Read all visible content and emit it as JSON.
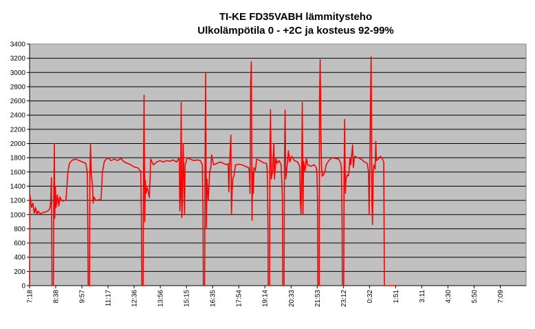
{
  "title": "TI-KE FD35VABH lämmitysteho",
  "subtitle": "Ulkolämpötila  0 - +2C ja kosteus 92-99%",
  "colors": {
    "plot_bg": "#c0c0c0",
    "line": "#ff0000",
    "grid": "#000000"
  },
  "chart_data": {
    "type": "line",
    "title": "TI-KE FD35VABH lämmitysteho",
    "subtitle": "Ulkolämpötila  0 - +2C ja kosteus 92-99%",
    "xlabel": "",
    "ylabel": "",
    "ylim": [
      0,
      3400
    ],
    "yticks": [
      0,
      200,
      400,
      600,
      800,
      1000,
      1200,
      1400,
      1600,
      1800,
      2000,
      2200,
      2400,
      2600,
      2800,
      3000,
      3200,
      3400
    ],
    "xticks": [
      "7:18",
      "8:38",
      "9:57",
      "11:17",
      "12:36",
      "13:56",
      "15:15",
      "16:35",
      "17:54",
      "19:14",
      "20:33",
      "21:53",
      "23:12",
      "0:32",
      "1:51",
      "3:11",
      "4:30",
      "5:50",
      "7:09"
    ],
    "x_unit": "minutes since 7:18",
    "x_max": 1500,
    "grid": "horizontal",
    "legend": "none",
    "series": [
      {
        "values": [
          [
            0,
            0
          ],
          [
            1,
            1280
          ],
          [
            3,
            1200
          ],
          [
            6,
            1100
          ],
          [
            10,
            1160
          ],
          [
            14,
            1020
          ],
          [
            18,
            1100
          ],
          [
            22,
            1000
          ],
          [
            26,
            1050
          ],
          [
            32,
            1010
          ],
          [
            40,
            1030
          ],
          [
            50,
            1040
          ],
          [
            58,
            1060
          ],
          [
            62,
            1100
          ],
          [
            64,
            1200
          ],
          [
            66,
            1520
          ],
          [
            67,
            760
          ],
          [
            68,
            0
          ],
          [
            72,
            0
          ],
          [
            73,
            1200
          ],
          [
            75,
            2000
          ],
          [
            76,
            950
          ],
          [
            78,
            1400
          ],
          [
            80,
            1100
          ],
          [
            84,
            1280
          ],
          [
            88,
            1120
          ],
          [
            92,
            1250
          ],
          [
            96,
            1200
          ],
          [
            100,
            1190
          ],
          [
            110,
            1200
          ],
          [
            116,
            1600
          ],
          [
            120,
            1720
          ],
          [
            130,
            1770
          ],
          [
            140,
            1780
          ],
          [
            150,
            1760
          ],
          [
            160,
            1740
          ],
          [
            170,
            1720
          ],
          [
            174,
            1600
          ],
          [
            176,
            820
          ],
          [
            177,
            0
          ],
          [
            181,
            0
          ],
          [
            182,
            1500
          ],
          [
            184,
            2000
          ],
          [
            186,
            1600
          ],
          [
            190,
            1400
          ],
          [
            192,
            1160
          ],
          [
            194,
            1250
          ],
          [
            200,
            1200
          ],
          [
            210,
            1210
          ],
          [
            216,
            1220
          ],
          [
            220,
            1600
          ],
          [
            226,
            1750
          ],
          [
            236,
            1800
          ],
          [
            246,
            1760
          ],
          [
            256,
            1780
          ],
          [
            266,
            1760
          ],
          [
            276,
            1790
          ],
          [
            286,
            1740
          ],
          [
            296,
            1720
          ],
          [
            306,
            1700
          ],
          [
            316,
            1670
          ],
          [
            326,
            1660
          ],
          [
            336,
            1610
          ],
          [
            338,
            880
          ],
          [
            339,
            0
          ],
          [
            343,
            0
          ],
          [
            344,
            1500
          ],
          [
            346,
            2680
          ],
          [
            348,
            900
          ],
          [
            350,
            1480
          ],
          [
            352,
            1300
          ],
          [
            356,
            1380
          ],
          [
            360,
            1280
          ],
          [
            362,
            1240
          ],
          [
            364,
            1500
          ],
          [
            366,
            1780
          ],
          [
            374,
            1700
          ],
          [
            384,
            1740
          ],
          [
            394,
            1760
          ],
          [
            404,
            1740
          ],
          [
            414,
            1760
          ],
          [
            424,
            1750
          ],
          [
            434,
            1770
          ],
          [
            444,
            1740
          ],
          [
            452,
            1800
          ],
          [
            454,
            1050
          ],
          [
            456,
            1300
          ],
          [
            458,
            2580
          ],
          [
            460,
            960
          ],
          [
            462,
            1200
          ],
          [
            464,
            2000
          ],
          [
            466,
            1600
          ],
          [
            468,
            1000
          ],
          [
            470,
            1700
          ],
          [
            476,
            1800
          ],
          [
            486,
            1780
          ],
          [
            496,
            1760
          ],
          [
            506,
            1770
          ],
          [
            516,
            1760
          ],
          [
            522,
            1700
          ],
          [
            524,
            1000
          ],
          [
            525,
            0
          ],
          [
            529,
            0
          ],
          [
            530,
            1600
          ],
          [
            532,
            3000
          ],
          [
            534,
            800
          ],
          [
            536,
            1500
          ],
          [
            540,
            1200
          ],
          [
            544,
            1600
          ],
          [
            548,
            1680
          ],
          [
            550,
            1840
          ],
          [
            556,
            1700
          ],
          [
            566,
            1720
          ],
          [
            576,
            1740
          ],
          [
            586,
            1720
          ],
          [
            596,
            1700
          ],
          [
            600,
            1720
          ],
          [
            602,
            1320
          ],
          [
            604,
            1660
          ],
          [
            608,
            2120
          ],
          [
            610,
            1000
          ],
          [
            612,
            1320
          ],
          [
            614,
            1500
          ],
          [
            618,
            1560
          ],
          [
            622,
            1700
          ],
          [
            632,
            1710
          ],
          [
            642,
            1700
          ],
          [
            652,
            1680
          ],
          [
            662,
            1660
          ],
          [
            664,
            1600
          ],
          [
            666,
            1300
          ],
          [
            668,
            2850
          ],
          [
            670,
            3150
          ],
          [
            672,
            920
          ],
          [
            674,
            1600
          ],
          [
            676,
            1300
          ],
          [
            678,
            1660
          ],
          [
            682,
            1620
          ],
          [
            686,
            1780
          ],
          [
            696,
            1760
          ],
          [
            706,
            1730
          ],
          [
            716,
            1720
          ],
          [
            718,
            1620
          ],
          [
            720,
            960
          ],
          [
            721,
            0
          ],
          [
            725,
            0
          ],
          [
            726,
            1800
          ],
          [
            728,
            2480
          ],
          [
            730,
            1500
          ],
          [
            734,
            1600
          ],
          [
            738,
            2000
          ],
          [
            740,
            1500
          ],
          [
            744,
            1800
          ],
          [
            748,
            1720
          ],
          [
            754,
            1760
          ],
          [
            760,
            1700
          ],
          [
            764,
            1220
          ],
          [
            765,
            0
          ],
          [
            769,
            0
          ],
          [
            770,
            1700
          ],
          [
            772,
            2470
          ],
          [
            774,
            1500
          ],
          [
            778,
            1680
          ],
          [
            782,
            1900
          ],
          [
            786,
            1740
          ],
          [
            792,
            1820
          ],
          [
            800,
            1760
          ],
          [
            810,
            1740
          ],
          [
            816,
            1680
          ],
          [
            818,
            1200
          ],
          [
            820,
            1000
          ],
          [
            822,
            1600
          ],
          [
            824,
            2580
          ],
          [
            826,
            1000
          ],
          [
            828,
            1750
          ],
          [
            832,
            1600
          ],
          [
            836,
            1800
          ],
          [
            840,
            1700
          ],
          [
            850,
            1680
          ],
          [
            860,
            1700
          ],
          [
            866,
            1660
          ],
          [
            868,
            1600
          ],
          [
            870,
            1200
          ],
          [
            871,
            0
          ],
          [
            875,
            0
          ],
          [
            876,
            2600
          ],
          [
            878,
            3180
          ],
          [
            880,
            2200
          ],
          [
            882,
            1700
          ],
          [
            884,
            1540
          ],
          [
            888,
            1560
          ],
          [
            892,
            1600
          ],
          [
            896,
            1700
          ],
          [
            904,
            1760
          ],
          [
            914,
            1800
          ],
          [
            924,
            1790
          ],
          [
            934,
            1780
          ],
          [
            940,
            1720
          ],
          [
            942,
            1660
          ],
          [
            944,
            1000
          ],
          [
            945,
            0
          ],
          [
            949,
            0
          ],
          [
            950,
            1500
          ],
          [
            952,
            2340
          ],
          [
            954,
            1300
          ],
          [
            956,
            1500
          ],
          [
            960,
            1560
          ],
          [
            964,
            1550
          ],
          [
            968,
            1800
          ],
          [
            970,
            1700
          ],
          [
            976,
            1980
          ],
          [
            978,
            1660
          ],
          [
            982,
            1820
          ],
          [
            992,
            1800
          ],
          [
            1002,
            1780
          ],
          [
            1012,
            1740
          ],
          [
            1020,
            1720
          ],
          [
            1024,
            1600
          ],
          [
            1026,
            1000
          ],
          [
            1028,
            1700
          ],
          [
            1030,
            2600
          ],
          [
            1032,
            3220
          ],
          [
            1034,
            1200
          ],
          [
            1036,
            860
          ],
          [
            1038,
            1600
          ],
          [
            1040,
            1700
          ],
          [
            1044,
            1640
          ],
          [
            1046,
            2030
          ],
          [
            1048,
            1760
          ],
          [
            1054,
            1780
          ],
          [
            1060,
            1820
          ],
          [
            1064,
            1800
          ],
          [
            1068,
            1760
          ],
          [
            1070,
            1740
          ],
          [
            1072,
            0
          ],
          [
            1100,
            0
          ],
          [
            1110,
            0
          ]
        ]
      }
    ]
  }
}
